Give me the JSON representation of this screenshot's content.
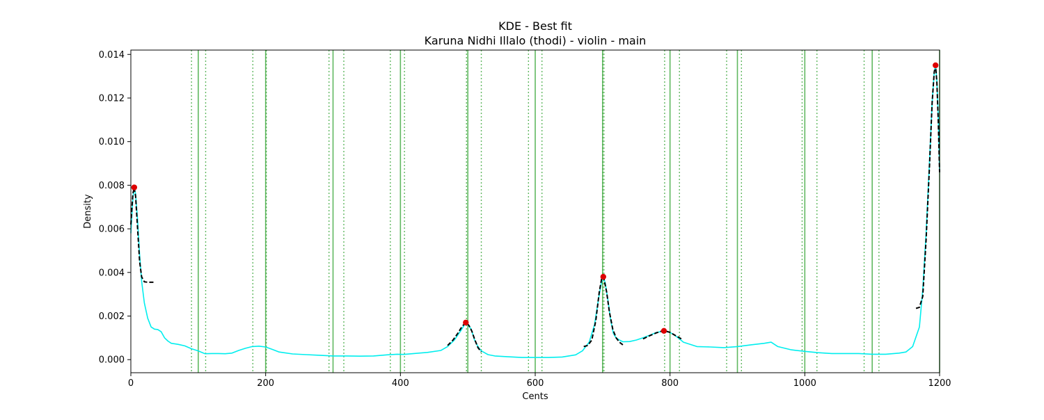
{
  "chart_data": {
    "type": "line",
    "title": "KDE - Best fit",
    "subtitle": "Karuna Nidhi Illalo (thodi) - violin - main",
    "xlabel": "Cents",
    "ylabel": "Density",
    "xlim": [
      0,
      1200
    ],
    "ylim": [
      -0.0006,
      0.0142
    ],
    "grid": false,
    "x_ticks": [
      0,
      200,
      400,
      600,
      800,
      1000,
      1200
    ],
    "x_tick_labels": [
      "0",
      "200",
      "400",
      "600",
      "800",
      "1000",
      "1200"
    ],
    "y_ticks": [
      0.0,
      0.002,
      0.004,
      0.006,
      0.008,
      0.01,
      0.012,
      0.014
    ],
    "y_tick_labels": [
      "0.000",
      "0.002",
      "0.004",
      "0.006",
      "0.008",
      "0.010",
      "0.012",
      "0.014"
    ],
    "colors": {
      "kde": "#00eeee",
      "fit": "#000000",
      "peak": "#dd0000",
      "reference": "#2ca02c"
    },
    "reference_lines_solid": [
      100,
      200,
      300,
      400,
      500,
      600,
      700,
      800,
      900,
      1000,
      1100,
      1200
    ],
    "reference_lines_dotted": [
      [
        90,
        111
      ],
      [
        181,
        201
      ],
      [
        294,
        316
      ],
      [
        385,
        406
      ],
      [
        498,
        520
      ],
      [
        590,
        610
      ],
      [
        700,
        702
      ],
      [
        792,
        814
      ],
      [
        884,
        906
      ],
      [
        996,
        1018
      ],
      [
        1088,
        1110
      ]
    ],
    "series": [
      {
        "style": "solid",
        "color": "#00eeee",
        "x": [
          0,
          3,
          5,
          7,
          10,
          13,
          16,
          20,
          25,
          30,
          35,
          40,
          45,
          50,
          55,
          60,
          70,
          80,
          90,
          100,
          110,
          120,
          130,
          140,
          150,
          160,
          170,
          180,
          190,
          200,
          210,
          220,
          240,
          260,
          280,
          300,
          320,
          340,
          360,
          380,
          395,
          405,
          420,
          440,
          460,
          470,
          480,
          490,
          497,
          505,
          510,
          515,
          520,
          530,
          540,
          560,
          580,
          600,
          620,
          640,
          660,
          670,
          680,
          688,
          694,
          698,
          701,
          704,
          708,
          712,
          716,
          720,
          725,
          730,
          740,
          750,
          760,
          770,
          780,
          790,
          800,
          810,
          820,
          840,
          860,
          880,
          900,
          920,
          940,
          950,
          960,
          980,
          1000,
          1020,
          1040,
          1060,
          1080,
          1100,
          1120,
          1140,
          1150,
          1160,
          1170,
          1175,
          1180,
          1185,
          1189,
          1192,
          1194,
          1196,
          1198,
          1200
        ],
        "y": [
          0.0058,
          0.0074,
          0.0079,
          0.0076,
          0.0064,
          0.0048,
          0.0036,
          0.0026,
          0.0019,
          0.0015,
          0.0014,
          0.00138,
          0.00128,
          0.001,
          0.00085,
          0.00075,
          0.0007,
          0.00063,
          0.0005,
          0.0004,
          0.00027,
          0.00028,
          0.00028,
          0.00027,
          0.0003,
          0.00042,
          0.00052,
          0.0006,
          0.00062,
          0.00058,
          0.00047,
          0.00035,
          0.00026,
          0.00023,
          0.0002,
          0.00017,
          0.00017,
          0.00016,
          0.00017,
          0.00022,
          0.00025,
          0.00024,
          0.00028,
          0.00033,
          0.00042,
          0.0006,
          0.0009,
          0.00135,
          0.0017,
          0.0014,
          0.0009,
          0.0006,
          0.0004,
          0.00023,
          0.00017,
          0.00013,
          0.0001,
          0.0001,
          0.0001,
          0.00012,
          0.00022,
          0.0004,
          0.0008,
          0.0016,
          0.0028,
          0.0035,
          0.0038,
          0.0035,
          0.0027,
          0.0018,
          0.0012,
          0.001,
          0.0009,
          0.00082,
          0.00083,
          0.0009,
          0.001,
          0.00112,
          0.00125,
          0.0013,
          0.00125,
          0.00105,
          0.0008,
          0.0006,
          0.00058,
          0.00055,
          0.0006,
          0.00068,
          0.00075,
          0.0008,
          0.0006,
          0.00045,
          0.00038,
          0.00032,
          0.00028,
          0.00028,
          0.00028,
          0.00025,
          0.00025,
          0.0003,
          0.00035,
          0.0006,
          0.0015,
          0.0032,
          0.0058,
          0.0091,
          0.0118,
          0.0132,
          0.0135,
          0.0128,
          0.0112,
          0.0086
        ]
      },
      {
        "style": "dashed",
        "color": "#000000",
        "x": [
          0,
          3,
          5,
          7,
          10,
          13,
          16,
          20,
          25,
          30,
          34
        ],
        "y": [
          0.0062,
          0.0076,
          0.0079,
          0.0075,
          0.006,
          0.0045,
          0.0038,
          0.00357,
          0.00355,
          0.00355,
          0.00355
        ]
      },
      {
        "style": "dashed",
        "color": "#000000",
        "x": [
          470,
          478,
          485,
          490,
          495,
          498,
          502,
          506,
          510,
          515,
          520
        ],
        "y": [
          0.00065,
          0.0009,
          0.0012,
          0.00145,
          0.00165,
          0.0017,
          0.00155,
          0.0013,
          0.00095,
          0.00055,
          0.00035
        ]
      },
      {
        "style": "dashed",
        "color": "#000000",
        "x": [
          672,
          678,
          684,
          690,
          695,
          699,
          702,
          706,
          710,
          715,
          720,
          725,
          730
        ],
        "y": [
          0.0006,
          0.00065,
          0.0009,
          0.0018,
          0.0031,
          0.0038,
          0.0037,
          0.0031,
          0.0022,
          0.0014,
          0.001,
          0.0008,
          0.00068
        ]
      },
      {
        "style": "dashed",
        "color": "#000000",
        "x": [
          760,
          770,
          780,
          788,
          795,
          800,
          805,
          810,
          818
        ],
        "y": [
          0.00095,
          0.0011,
          0.00123,
          0.00131,
          0.0013,
          0.00125,
          0.00116,
          0.00107,
          0.00093
        ]
      },
      {
        "style": "dashed",
        "color": "#000000",
        "x": [
          1165,
          1170,
          1175,
          1180,
          1185,
          1189,
          1192,
          1194,
          1196,
          1198,
          1200
        ],
        "y": [
          0.00235,
          0.0024,
          0.0029,
          0.0055,
          0.0089,
          0.0118,
          0.0132,
          0.0135,
          0.0127,
          0.0109,
          0.0086
        ]
      }
    ],
    "peaks": {
      "x": [
        5,
        497,
        701,
        791,
        1194
      ],
      "y": [
        0.0079,
        0.0017,
        0.0038,
        0.00132,
        0.0135
      ]
    }
  }
}
